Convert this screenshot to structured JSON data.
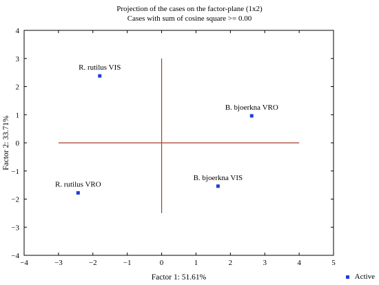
{
  "chart_data": {
    "type": "scatter",
    "title": "Projection of the cases on the factor-plane (1x2)",
    "subtitle": "Cases with sum of cosine square >= 0.00",
    "xlabel": "Factor 1: 51.61%",
    "ylabel": "Factor 2: 33.71%",
    "xlim": [
      -4,
      5
    ],
    "ylim": [
      -4,
      4
    ],
    "x_ticks": [
      -4,
      -3,
      -2,
      -1,
      0,
      1,
      2,
      3,
      4,
      5
    ],
    "y_ticks": [
      -4,
      -3,
      -2,
      -1,
      0,
      1,
      2,
      3,
      4
    ],
    "grid": false,
    "legend_position": "bottom-right",
    "series": [
      {
        "name": "Active",
        "color": "#1f3fd6",
        "points": [
          {
            "label": "R. rutilus VIS",
            "x": -1.8,
            "y": 2.38
          },
          {
            "label": "B. bjoerkna VRO",
            "x": 2.62,
            "y": 0.96
          },
          {
            "label": "B. bjoerkna VIS",
            "x": 1.64,
            "y": -1.54
          },
          {
            "label": "R. rutilus VRO",
            "x": -2.43,
            "y": -1.78
          }
        ]
      }
    ],
    "reference_lines": {
      "color": "#a83a2a",
      "horizontal": {
        "y": 0,
        "x_from": -3,
        "x_to": 4
      },
      "vertical": {
        "x": 0,
        "y_from": -2.5,
        "y_to": 3
      }
    }
  }
}
